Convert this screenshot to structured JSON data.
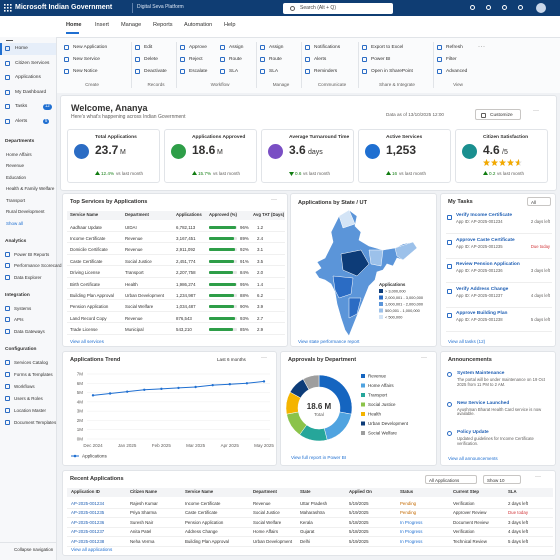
{
  "top_bar": {
    "brand": "Microsoft Indian Government",
    "product": "Digital Seva Platform",
    "search": "Search (Alt + Q)"
  },
  "ribbon": {
    "tabs": [
      "Home",
      "Insert",
      "Manage",
      "Reports",
      "Automation",
      "Help"
    ],
    "groups": [
      {
        "label": "Create",
        "items": [
          "New Application",
          "New Service",
          "New Notice"
        ]
      },
      {
        "label": "Records",
        "items": [
          "Edit",
          "Delete",
          "Deactivate"
        ]
      },
      {
        "label": "Workflow",
        "items": [
          "Approve",
          "Reject",
          "Escalate",
          "Assign",
          "Route",
          "SLA"
        ]
      },
      {
        "label": "Manage",
        "items": [
          "Assign",
          "Route",
          "SLA"
        ]
      },
      {
        "label": "Communicate",
        "items": [
          "Notifications",
          "Alerts",
          "Reminders"
        ]
      },
      {
        "label": "Share & Integrate",
        "items": [
          "Export to Excel",
          "Power BI",
          "Open in SharePoint"
        ]
      },
      {
        "label": "View",
        "items": [
          "Refresh",
          "Filter",
          "Advanced"
        ]
      }
    ]
  },
  "nav": {
    "top": [
      {
        "label": "Home"
      },
      {
        "label": "Citizen Services"
      },
      {
        "label": "Applications"
      },
      {
        "label": "My Dashboard"
      },
      {
        "label": "Tasks",
        "badge": "12"
      },
      {
        "label": "Alerts",
        "badge": "5"
      }
    ],
    "sections": [
      {
        "title": "Departments",
        "items": [
          "Home Affairs",
          "Revenue",
          "Education",
          "Health & Family Welfare",
          "Transport",
          "Rural Development"
        ],
        "link": "Show all"
      },
      {
        "title": "Analytics",
        "items": [
          "Power BI Reports",
          "Performance Scorecard",
          "Data Explorer"
        ]
      },
      {
        "title": "Integration",
        "items": [
          "Systems",
          "APIs",
          "Data Gateways"
        ]
      },
      {
        "title": "Configuration",
        "items": [
          "Services Catalog",
          "Forms & Templates",
          "Workflows",
          "Users & Roles",
          "Location Master",
          "Document Templates"
        ]
      }
    ],
    "collapse": "Collapse navigation"
  },
  "welcome": {
    "title": "Welcome, Ananya",
    "subtitle": "Here's what's happening across Indian Government",
    "data_as_of": "Data as of 13/10/2025 12:00",
    "customize": "Customize"
  },
  "kpis": [
    {
      "label": "Total Applications",
      "value": "23.7",
      "unit": "M",
      "delta": "12.4%",
      "note": "vs last month",
      "trend": "up",
      "color": "#107c10",
      "icon_color": "#2b6cc4"
    },
    {
      "label": "Applications Approved",
      "value": "18.6",
      "unit": "M",
      "delta": "15.7%",
      "note": "vs last month",
      "trend": "up",
      "color": "#107c10",
      "icon_color": "#2e9e48"
    },
    {
      "label": "Average Turnaround Time",
      "value": "3.6",
      "unit": "days",
      "delta": "0.6",
      "note": "vs last month",
      "trend": "down",
      "color": "#107c10",
      "icon_color": "#7a4fc4"
    },
    {
      "label": "Active Services",
      "value": "1,253",
      "unit": "",
      "delta": "16",
      "note": "vs last month",
      "trend": "up",
      "color": "#107c10",
      "icon_color": "#1f6fd1"
    },
    {
      "label": "Citizen Satisfaction",
      "value": 4.6,
      "unit": "/5",
      "rating_max": 5,
      "delta": "0.2",
      "note": "vs last month",
      "trend": "up",
      "color": "#107c10",
      "icon_color": "#1a8f8f",
      "star_color": "#f2a900"
    }
  ],
  "top_services": {
    "title": "Top Services by Applications",
    "columns": [
      "Service Name",
      "Department",
      "Applications",
      "Approved (%)",
      "Avg TAT (Days)"
    ],
    "bar_color": "#2e9e48",
    "rows": [
      {
        "service": "Aadhaar Update",
        "department": "UIDAI",
        "applications": "6,782,113",
        "approved": 96,
        "approved_label": "96%",
        "tat": "1.2"
      },
      {
        "service": "Income Certificate",
        "department": "Revenue",
        "applications": "3,167,451",
        "approved": 89,
        "approved_label": "89%",
        "tat": "2.4"
      },
      {
        "service": "Domicile Certificate",
        "department": "Revenue",
        "applications": "2,911,092",
        "approved": 92,
        "approved_label": "92%",
        "tat": "3.1"
      },
      {
        "service": "Caste Certificate",
        "department": "Social Justice",
        "applications": "2,451,774",
        "approved": 91,
        "approved_label": "91%",
        "tat": "3.5"
      },
      {
        "service": "Driving License",
        "department": "Transport",
        "applications": "2,207,758",
        "approved": 84,
        "approved_label": "84%",
        "tat": "2.0"
      },
      {
        "service": "Birth Certificate",
        "department": "Health",
        "applications": "1,986,274",
        "approved": 95,
        "approved_label": "95%",
        "tat": "1.4"
      },
      {
        "service": "Building Plan Approval",
        "department": "Urban Development",
        "applications": "1,234,987",
        "approved": 88,
        "approved_label": "88%",
        "tat": "6.2"
      },
      {
        "service": "Pension Application",
        "department": "Social Welfare",
        "applications": "1,034,487",
        "approved": 90,
        "approved_label": "90%",
        "tat": "3.9"
      },
      {
        "service": "Land Record Copy",
        "department": "Revenue",
        "applications": "876,543",
        "approved": 93,
        "approved_label": "93%",
        "tat": "2.7"
      },
      {
        "service": "Trade License",
        "department": "Municipal",
        "applications": "543,210",
        "approved": 85,
        "approved_label": "85%",
        "tat": "2.9"
      }
    ],
    "link": "View all services"
  },
  "map": {
    "title": "Applications by State / UT",
    "legend_title": "Applications",
    "legend": [
      {
        "label": "> 3,000,000",
        "color": "#0d3c78"
      },
      {
        "label": "2,000,001 - 3,000,000",
        "color": "#2b6cc4"
      },
      {
        "label": "1,000,001 - 2,000,000",
        "color": "#5b95d9"
      },
      {
        "label": "500,001 - 1,000,000",
        "color": "#9cc1ea"
      },
      {
        "label": "< 500,000",
        "color": "#d3e4f6"
      }
    ],
    "link": "View state performance report"
  },
  "tasks": {
    "title": "My Tasks",
    "filter": "All",
    "items": [
      {
        "title": "Verify Income Certificate",
        "id": "App ID: AP-2025-001234",
        "due": "2 days left",
        "due_color": "#605e5c"
      },
      {
        "title": "Approve Caste Certificate",
        "id": "App ID: AP-2025-001235",
        "due": "Due today",
        "due_color": "#d13438"
      },
      {
        "title": "Review Pension Application",
        "id": "App ID: AP-2025-001236",
        "due": "3 days left",
        "due_color": "#605e5c"
      },
      {
        "title": "Verify Address Change",
        "id": "App ID: AP-2025-001237",
        "due": "4 days left",
        "due_color": "#605e5c"
      },
      {
        "title": "Approve Building Plan",
        "id": "App ID: AP-2025-001238",
        "due": "5 days left",
        "due_color": "#605e5c"
      }
    ],
    "link": "View all tasks (12)"
  },
  "chart_data": [
    {
      "type": "line",
      "title": "Applications Trend",
      "period": "Last 6 months",
      "categories": [
        "Dec 2024",
        null,
        "Jan 2025",
        null,
        "Feb 2025",
        null,
        "Mar 2025",
        null,
        "Apr 2025",
        null,
        "May 2025"
      ],
      "series": [
        {
          "name": "Applications",
          "color": "#1f6fd1",
          "values": [
            4.7,
            4.9,
            5.1,
            5.3,
            5.4,
            5.5,
            5.6,
            5.8,
            5.9,
            6.0,
            6.2
          ]
        }
      ],
      "ylim": [
        0,
        7
      ],
      "yticks": [
        {
          "value": 0,
          "label": "0M"
        },
        {
          "value": 1,
          "label": "1M"
        },
        {
          "value": 2,
          "label": "2M"
        },
        {
          "value": 3,
          "label": "3M"
        },
        {
          "value": 4,
          "label": "4M"
        },
        {
          "value": 5,
          "label": "5M"
        },
        {
          "value": 6,
          "label": "6M"
        },
        {
          "value": 7,
          "label": "7M"
        }
      ],
      "grid": true
    },
    {
      "type": "donut",
      "title": "Approvals by Department",
      "categories": [
        "Revenue",
        "Home Affairs",
        "Transport",
        "Social Justice",
        "Health",
        "Urban Development",
        "Social Welfare"
      ],
      "values": [
        28,
        18,
        14,
        12,
        11,
        9,
        8
      ],
      "colors": [
        "#1565c0",
        "#4fa3e0",
        "#26a69a",
        "#8bc34a",
        "#f4b400",
        "#0d3c78",
        "#9e9e9e"
      ],
      "center_value": "18.6 M",
      "center_label": "Total",
      "link": "View full report in Power BI"
    }
  ],
  "announcements": {
    "title": "Announcements",
    "items": [
      {
        "title": "System Maintenance",
        "text": "The portal will be under maintenance on 19 Oct 2025 from 11 PM to 2 AM."
      },
      {
        "title": "New Service Launched",
        "text": "Ayushman Bharat Health Card service is now available."
      },
      {
        "title": "Policy Update",
        "text": "Updated guidelines for Income Certificate verification."
      }
    ],
    "link": "View all announcements"
  },
  "recent": {
    "title": "Recent Applications",
    "filters": [
      "All Applications",
      "Show 10"
    ],
    "columns": [
      "Application ID",
      "Citizen Name",
      "Service Name",
      "Department",
      "State",
      "Applied On",
      "Status",
      "Current Step",
      "SLA"
    ],
    "status_colors": {
      "Pending": "#c46a00",
      "In Progress": "#1f6fd1"
    },
    "rows": [
      {
        "cells": [
          "AP-2025-001234",
          "Rajesh Kumar",
          "Income Certificate",
          "Revenue",
          "Uttar Pradesh",
          "5/19/2025",
          "Pending",
          "Verification",
          "2 days left"
        ],
        "sla_color": "#323130"
      },
      {
        "cells": [
          "AP-2025-001235",
          "Priya Sharma",
          "Caste Certificate",
          "Social Justice",
          "Maharashtra",
          "5/19/2025",
          "Pending",
          "Approver Review",
          "Due today"
        ],
        "sla_color": "#d13438"
      },
      {
        "cells": [
          "AP-2025-001236",
          "Suresh Nair",
          "Pension Application",
          "Social Welfare",
          "Kerala",
          "5/18/2025",
          "In Progress",
          "Document Review",
          "3 days left"
        ],
        "sla_color": "#323130"
      },
      {
        "cells": [
          "AP-2025-001237",
          "Anita Patel",
          "Address Change",
          "Home Affairs",
          "Gujarat",
          "5/18/2025",
          "In Progress",
          "Verification",
          "4 days left"
        ],
        "sla_color": "#323130"
      },
      {
        "cells": [
          "AP-2025-001238",
          "Neha Verma",
          "Building Plan Approval",
          "Urban Development",
          "Delhi",
          "5/19/2025",
          "In Progress",
          "Technical Review",
          "5 days left"
        ],
        "sla_color": "#323130"
      }
    ],
    "link": "View all applications"
  }
}
